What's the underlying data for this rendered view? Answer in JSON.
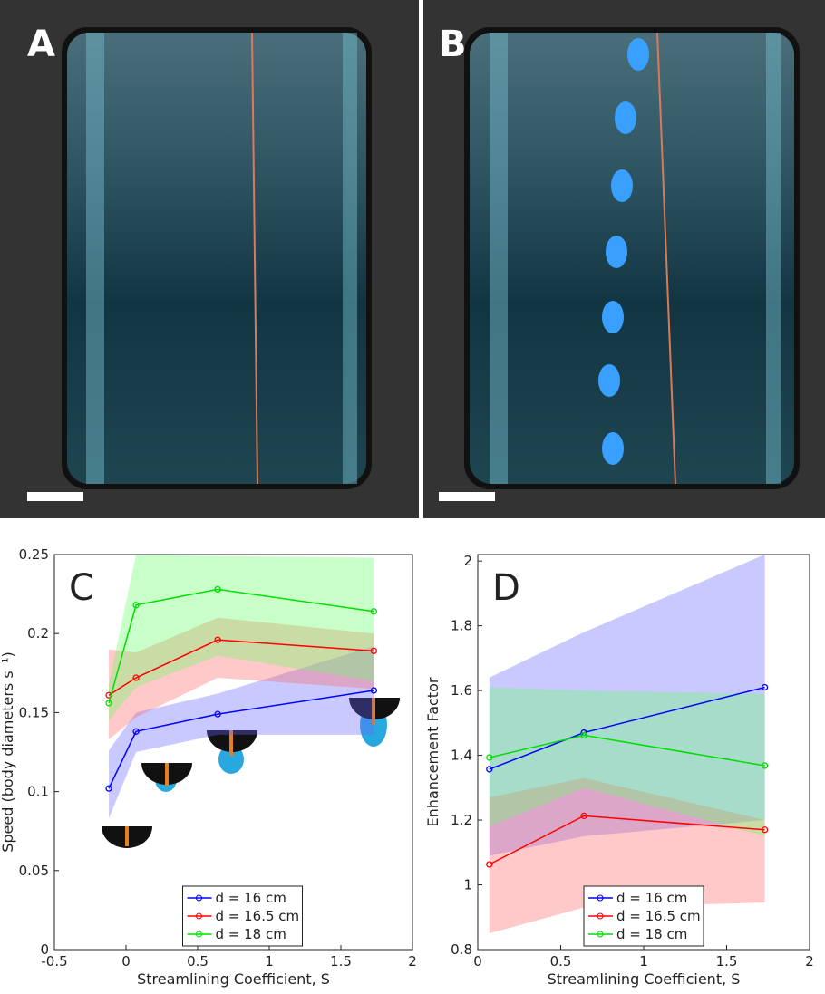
{
  "photos": [
    {
      "label": "A"
    },
    {
      "label": "B"
    }
  ],
  "chart_data": [
    {
      "type": "line",
      "panel_label": "C",
      "xlabel": "Streamlining Coefficient, S",
      "ylabel": "Speed (body diameters s⁻¹)",
      "xlim": [
        -0.5,
        2
      ],
      "xticks": [
        -0.5,
        0,
        0.5,
        1,
        1.5,
        2
      ],
      "ylim": [
        0,
        0.25
      ],
      "yticks": [
        0,
        0.05,
        0.1,
        0.15,
        0.2,
        0.25
      ],
      "x": [
        -0.12,
        0.07,
        0.64,
        1.73
      ],
      "legend": "lower center",
      "series": [
        {
          "name": "d = 16 cm",
          "color": "#0000ff",
          "band_color": "#6464ff",
          "values": [
            0.102,
            0.138,
            0.149,
            0.164
          ],
          "lower": [
            0.083,
            0.125,
            0.136,
            0.136
          ],
          "upper": [
            0.126,
            0.15,
            0.162,
            0.192
          ]
        },
        {
          "name": "d = 16.5 cm",
          "color": "#ff0000",
          "band_color": "#ff6464",
          "values": [
            0.161,
            0.172,
            0.196,
            0.189
          ],
          "lower": [
            0.133,
            0.147,
            0.172,
            0.165
          ],
          "upper": [
            0.19,
            0.188,
            0.21,
            0.2
          ]
        },
        {
          "name": "d = 18 cm",
          "color": "#00dd00",
          "band_color": "#64ff64",
          "values": [
            0.156,
            0.218,
            0.228,
            0.214
          ],
          "lower": [
            0.145,
            0.166,
            0.186,
            0.17
          ],
          "upper": [
            0.168,
            0.25,
            0.249,
            0.248
          ]
        }
      ]
    },
    {
      "type": "line",
      "panel_label": "D",
      "xlabel": "Streamlining Coefficient, S",
      "ylabel": "Enhancement Factor",
      "xlim": [
        0,
        2
      ],
      "xticks": [
        0,
        0.5,
        1,
        1.5,
        2
      ],
      "ylim": [
        0.8,
        2.02
      ],
      "yticks": [
        0.8,
        1,
        1.2,
        1.4,
        1.6,
        1.8,
        2
      ],
      "x": [
        0.07,
        0.64,
        1.73
      ],
      "legend": "lower center",
      "series": [
        {
          "name": "d = 16 cm",
          "color": "#0000ff",
          "band_color": "#6464ff",
          "values": [
            1.357,
            1.47,
            1.61
          ],
          "lower": [
            1.09,
            1.15,
            1.2
          ],
          "upper": [
            1.64,
            1.78,
            2.02
          ]
        },
        {
          "name": "d = 16.5 cm",
          "color": "#ff0000",
          "band_color": "#ff6464",
          "values": [
            1.063,
            1.213,
            1.17
          ],
          "lower": [
            0.85,
            0.93,
            0.945
          ],
          "upper": [
            1.27,
            1.33,
            1.2
          ]
        },
        {
          "name": "d = 18 cm",
          "color": "#00dd00",
          "band_color": "#64ff64",
          "values": [
            1.393,
            1.462,
            1.368
          ],
          "lower": [
            1.18,
            1.3,
            1.15
          ],
          "upper": [
            1.61,
            1.6,
            1.59
          ]
        }
      ]
    }
  ]
}
